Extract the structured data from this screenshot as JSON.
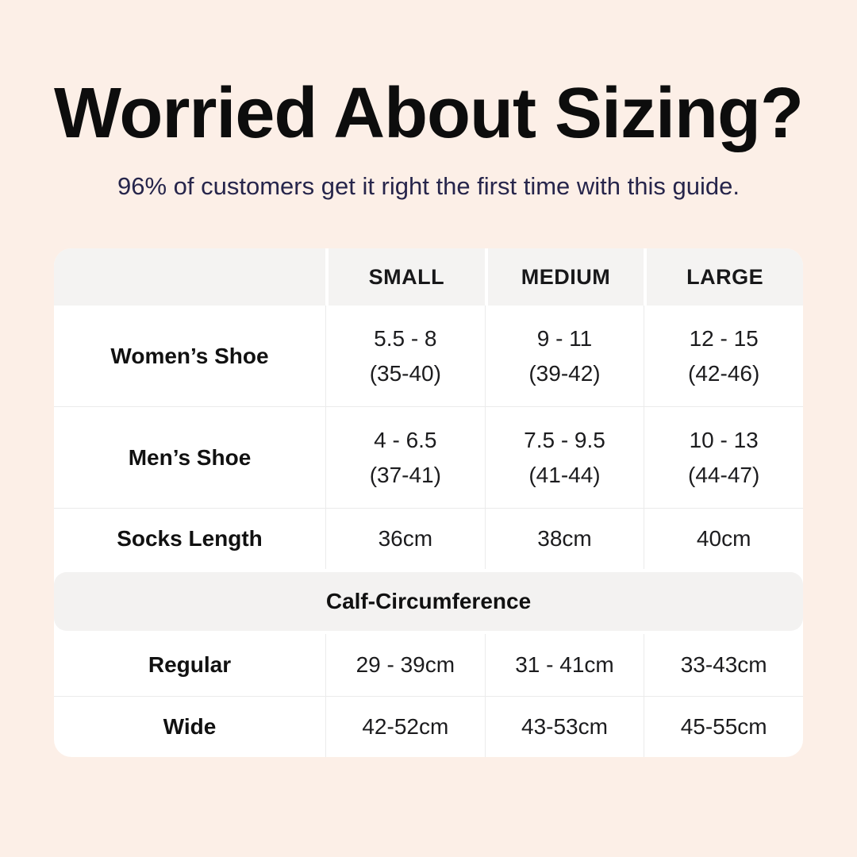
{
  "header": {
    "title": "Worried About Sizing?",
    "subtitle": "96% of customers get it right the first time with this guide.",
    "title_color": "#0d0d0d",
    "subtitle_color": "#26254b"
  },
  "page": {
    "background_color": "#fcefe7",
    "card_color": "#ffffff",
    "band_color": "#f3f2f1"
  },
  "table": {
    "columns": {
      "c1": "",
      "c2": "SMALL",
      "c3": "MEDIUM",
      "c4": "LARGE"
    },
    "rows": [
      {
        "label": "Women’s Shoe",
        "small": {
          "line1": "5.5 - 8",
          "line2": "(35-40)"
        },
        "medium": {
          "line1": "9 - 11",
          "line2": "(39-42)"
        },
        "large": {
          "line1": "12 - 15",
          "line2": "(42-46)"
        }
      },
      {
        "label": "Men’s Shoe",
        "small": {
          "line1": "4 - 6.5",
          "line2": "(37-41)"
        },
        "medium": {
          "line1": "7.5 - 9.5",
          "line2": "(41-44)"
        },
        "large": {
          "line1": "10 - 13",
          "line2": "(44-47)"
        }
      },
      {
        "label": "Socks Length",
        "small": {
          "line1": "36cm"
        },
        "medium": {
          "line1": "38cm"
        },
        "large": {
          "line1": "40cm"
        }
      }
    ],
    "calf_section": {
      "header": "Calf-Circumference",
      "rows": [
        {
          "label": "Regular",
          "small": "29 - 39cm",
          "medium": "31 - 41cm",
          "large": "33-43cm"
        },
        {
          "label": "Wide",
          "small": "42-52cm",
          "medium": "43-53cm",
          "large": "45-55cm"
        }
      ]
    }
  }
}
